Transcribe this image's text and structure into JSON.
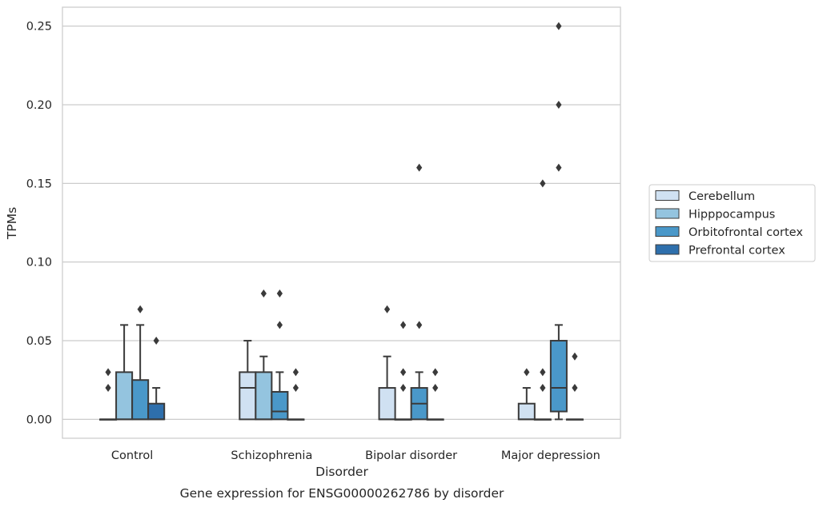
{
  "chart_data": {
    "type": "box",
    "title": "",
    "caption": "Gene expression for ENSG00000262786 by disorder",
    "xlabel": "Disorder",
    "ylabel": "TPMs",
    "ylim": [
      -0.012,
      0.262
    ],
    "yticks": [
      "0.00",
      "0.05",
      "0.10",
      "0.15",
      "0.20",
      "0.25"
    ],
    "ytick_values": [
      0,
      0.05,
      0.1,
      0.15,
      0.2,
      0.25
    ],
    "grid": true,
    "legend_position": "right",
    "categories": [
      "Control",
      "Schizophrenia",
      "Bipolar disorder",
      "Major depression"
    ],
    "series": [
      {
        "name": "Cerebellum",
        "color": "#d0e1f2",
        "boxes": [
          {
            "q1": 0,
            "median": 0,
            "q3": 0,
            "whisker_low": 0,
            "whisker_high": 0,
            "outliers": [
              0.02,
              0.03
            ]
          },
          {
            "q1": 0,
            "median": 0.02,
            "q3": 0.03,
            "whisker_low": 0,
            "whisker_high": 0.05,
            "outliers": []
          },
          {
            "q1": 0,
            "median": 0,
            "q3": 0.02,
            "whisker_low": 0,
            "whisker_high": 0.04,
            "outliers": [
              0.07
            ]
          },
          {
            "q1": 0,
            "median": 0,
            "q3": 0.01,
            "whisker_low": 0,
            "whisker_high": 0.02,
            "outliers": [
              0.03
            ]
          }
        ]
      },
      {
        "name": "Hipppocampus",
        "color": "#94c4df",
        "boxes": [
          {
            "q1": 0,
            "median": 0,
            "q3": 0.03,
            "whisker_low": 0,
            "whisker_high": 0.06,
            "outliers": []
          },
          {
            "q1": 0,
            "median": 0,
            "q3": 0.03,
            "whisker_low": 0,
            "whisker_high": 0.04,
            "outliers": [
              0.08
            ]
          },
          {
            "q1": 0,
            "median": 0,
            "q3": 0,
            "whisker_low": 0,
            "whisker_high": 0,
            "outliers": [
              0.02,
              0.03,
              0.06
            ]
          },
          {
            "q1": 0,
            "median": 0,
            "q3": 0,
            "whisker_low": 0,
            "whisker_high": 0,
            "outliers": [
              0.02,
              0.03,
              0.15
            ]
          }
        ]
      },
      {
        "name": "Orbitofrontal cortex",
        "color": "#4a98c9",
        "boxes": [
          {
            "q1": 0,
            "median": 0,
            "q3": 0.025,
            "whisker_low": 0,
            "whisker_high": 0.06,
            "outliers": [
              0.07
            ]
          },
          {
            "q1": 0,
            "median": 0.005,
            "q3": 0.0175,
            "whisker_low": 0,
            "whisker_high": 0.03,
            "outliers": [
              0.06,
              0.08
            ]
          },
          {
            "q1": 0,
            "median": 0.01,
            "q3": 0.02,
            "whisker_low": 0,
            "whisker_high": 0.03,
            "outliers": [
              0.06,
              0.16
            ]
          },
          {
            "q1": 0.005,
            "median": 0.02,
            "q3": 0.05,
            "whisker_low": 0,
            "whisker_high": 0.06,
            "outliers": [
              0.16,
              0.2,
              0.25
            ]
          }
        ]
      },
      {
        "name": "Prefrontal cortex",
        "color": "#2e6fac",
        "boxes": [
          {
            "q1": 0,
            "median": 0,
            "q3": 0.01,
            "whisker_low": 0,
            "whisker_high": 0.02,
            "outliers": [
              0.05
            ]
          },
          {
            "q1": 0,
            "median": 0,
            "q3": 0,
            "whisker_low": 0,
            "whisker_high": 0,
            "outliers": [
              0.02,
              0.03
            ]
          },
          {
            "q1": 0,
            "median": 0,
            "q3": 0,
            "whisker_low": 0,
            "whisker_high": 0,
            "outliers": [
              0.02,
              0.03
            ]
          },
          {
            "q1": 0,
            "median": 0,
            "q3": 0,
            "whisker_low": 0,
            "whisker_high": 0,
            "outliers": [
              0.02,
              0.04
            ]
          }
        ]
      }
    ]
  }
}
